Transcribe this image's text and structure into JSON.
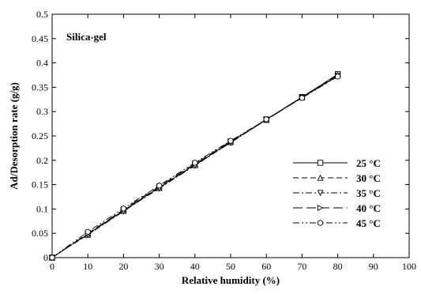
{
  "chart_data": {
    "type": "line",
    "title": "Silica-gel",
    "xlabel": "Relative humidity (%)",
    "ylabel": "Ad/Desorption rate (g/g)",
    "xlim": [
      0,
      100
    ],
    "ylim": [
      0,
      0.5
    ],
    "xticks": [
      0,
      10,
      20,
      30,
      40,
      50,
      60,
      70,
      80,
      90,
      100
    ],
    "yticks": [
      0,
      0.05,
      0.1,
      0.15,
      0.2,
      0.25,
      0.3,
      0.35,
      0.4,
      0.45,
      0.5
    ],
    "xtick_labels": [
      "0",
      "10",
      "20",
      "30",
      "40",
      "50",
      "60",
      "70",
      "80",
      "90",
      "100"
    ],
    "ytick_labels": [
      "0",
      "0.05",
      "0.1",
      "0.15",
      "0.2",
      "0.25",
      "0.3",
      "0.35",
      "0.4",
      "0.45",
      "0.5"
    ],
    "grid": false,
    "legend_position": "lower-right",
    "x": [
      0,
      5,
      10,
      15,
      20,
      25,
      30,
      35,
      40,
      45,
      50,
      55,
      60,
      65,
      70,
      75,
      80
    ],
    "series": [
      {
        "name": "25 °C",
        "marker": "square",
        "dash": "solid",
        "values": [
          0,
          0.0245,
          0.048,
          0.073,
          0.097,
          0.121,
          0.144,
          0.168,
          0.191,
          0.214,
          0.238,
          0.261,
          0.284,
          0.307,
          0.33,
          0.353,
          0.377
        ]
      },
      {
        "name": "30 °C",
        "marker": "triangle-up",
        "dash": "dash",
        "values": [
          0,
          0.024,
          0.047,
          0.072,
          0.096,
          0.12,
          0.143,
          0.167,
          0.19,
          0.213,
          0.237,
          0.26,
          0.283,
          0.306,
          0.329,
          0.352,
          0.375
        ]
      },
      {
        "name": "35 °C",
        "marker": "triangle-down",
        "dash": "dashdot",
        "values": [
          0,
          0.024,
          0.047,
          0.071,
          0.095,
          0.119,
          0.142,
          0.166,
          0.189,
          0.213,
          0.236,
          0.26,
          0.283,
          0.306,
          0.329,
          0.351,
          0.374
        ]
      },
      {
        "name": "40 °C",
        "marker": "triangle-right",
        "dash": "longdash",
        "values": [
          0,
          0.025,
          0.05,
          0.074,
          0.099,
          0.123,
          0.146,
          0.17,
          0.193,
          0.216,
          0.239,
          0.261,
          0.284,
          0.306,
          0.329,
          0.351,
          0.373
        ]
      },
      {
        "name": "45 °C",
        "marker": "circle",
        "dash": "dashdotdot",
        "values": [
          0,
          0.027,
          0.053,
          0.077,
          0.101,
          0.125,
          0.148,
          0.172,
          0.195,
          0.218,
          0.24,
          0.262,
          0.284,
          0.306,
          0.328,
          0.35,
          0.372
        ]
      }
    ]
  }
}
